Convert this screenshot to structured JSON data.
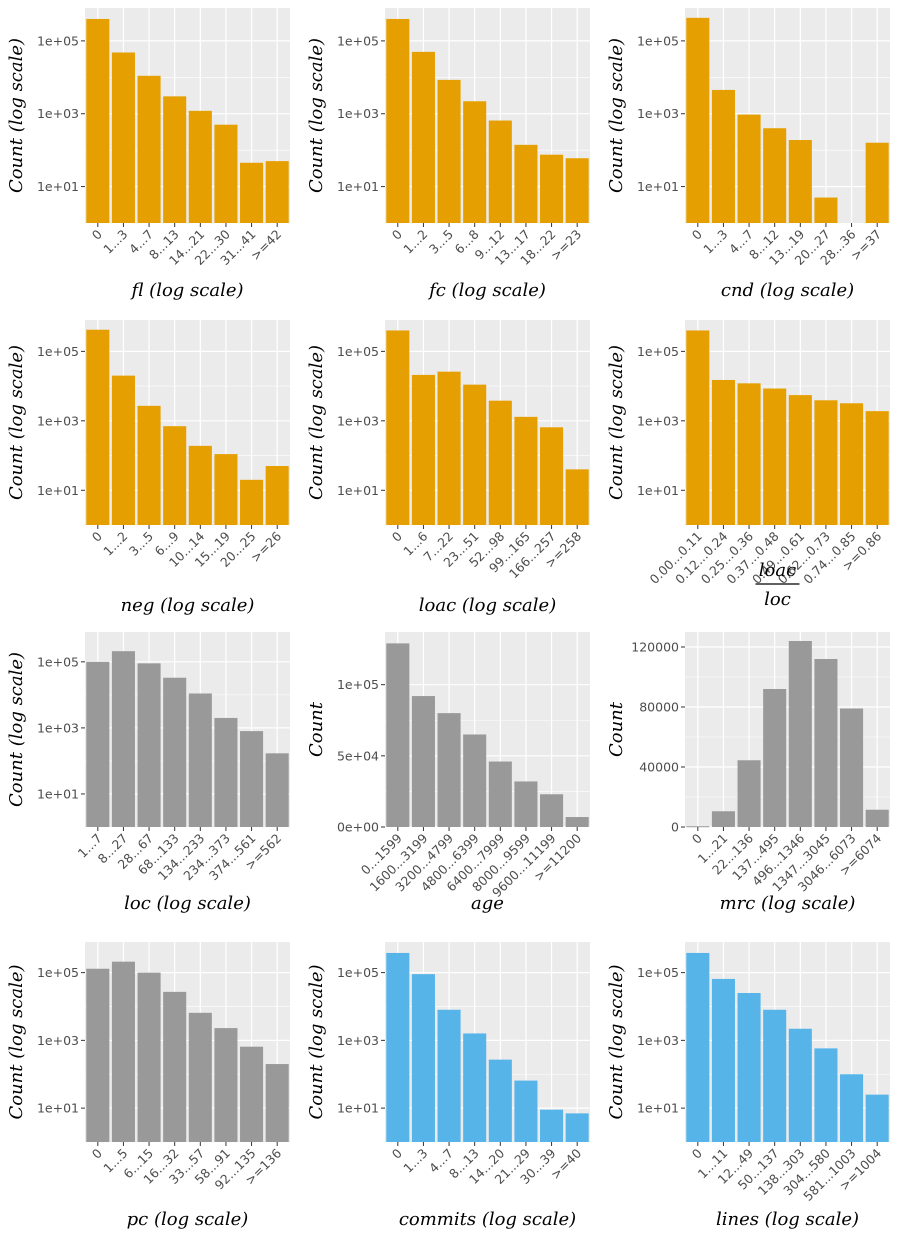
{
  "colors": {
    "orange": "#E69F00",
    "grey": "#999999",
    "blue": "#56B4E9",
    "panel_bg": "#EBEBEB",
    "grid": "#FFFFFF"
  },
  "chart_data": [
    {
      "id": "fl",
      "type": "bar",
      "scale": "log",
      "color": "orange",
      "categories": [
        "0",
        "1...3",
        "4...7",
        "8...13",
        "14...21",
        "22...30",
        "31...41",
        ">=42"
      ],
      "values": [
        400000,
        48000,
        11000,
        3000,
        1200,
        500,
        45,
        50
      ],
      "ylim": [
        1,
        800000
      ],
      "yticks": [
        10,
        1000,
        100000
      ],
      "ytick_labels": [
        "1e+01",
        "1e+03",
        "1e+05"
      ],
      "ylabel": "Count (log scale)",
      "xlabel": "fl (log scale)"
    },
    {
      "id": "fc",
      "type": "bar",
      "scale": "log",
      "color": "orange",
      "categories": [
        "0",
        "1...2",
        "3...5",
        "6...8",
        "9...12",
        "13...17",
        "18...22",
        ">=23"
      ],
      "values": [
        400000,
        50000,
        8500,
        2200,
        650,
        140,
        75,
        60
      ],
      "ylim": [
        1,
        800000
      ],
      "yticks": [
        10,
        1000,
        100000
      ],
      "ytick_labels": [
        "1e+01",
        "1e+03",
        "1e+05"
      ],
      "ylabel": "Count (log scale)",
      "xlabel": "fc (log scale)"
    },
    {
      "id": "cnd",
      "type": "bar",
      "scale": "log",
      "color": "orange",
      "categories": [
        "0",
        "1...3",
        "4...7",
        "8...12",
        "13...19",
        "20...27",
        "28...36",
        ">=37"
      ],
      "values": [
        430000,
        4500,
        950,
        400,
        190,
        5,
        0,
        160
      ],
      "ylim": [
        1,
        800000
      ],
      "yticks": [
        10,
        1000,
        100000
      ],
      "ytick_labels": [
        "1e+01",
        "1e+03",
        "1e+05"
      ],
      "ylabel": "Count (log scale)",
      "xlabel": "cnd (log scale)"
    },
    {
      "id": "neg",
      "type": "bar",
      "scale": "log",
      "color": "orange",
      "categories": [
        "0",
        "1...2",
        "3...5",
        "6...9",
        "10...14",
        "15...19",
        "20...25",
        ">=26"
      ],
      "values": [
        420000,
        20000,
        2700,
        700,
        190,
        110,
        20,
        50
      ],
      "ylim": [
        1,
        800000
      ],
      "yticks": [
        10,
        1000,
        100000
      ],
      "ytick_labels": [
        "1e+01",
        "1e+03",
        "1e+05"
      ],
      "ylabel": "Count (log scale)",
      "xlabel": "neg (log scale)"
    },
    {
      "id": "loac",
      "type": "bar",
      "scale": "log",
      "color": "orange",
      "categories": [
        "0",
        "1...6",
        "7...22",
        "23...51",
        "52...98",
        "99...165",
        "166...257",
        ">=258"
      ],
      "values": [
        400000,
        21000,
        26000,
        11000,
        3800,
        1300,
        650,
        40
      ],
      "ylim": [
        1,
        800000
      ],
      "yticks": [
        10,
        1000,
        100000
      ],
      "ytick_labels": [
        "1e+01",
        "1e+03",
        "1e+05"
      ],
      "ylabel": "Count (log scale)",
      "xlabel": "loac (log scale)"
    },
    {
      "id": "loac_loc",
      "type": "bar",
      "scale": "log",
      "color": "orange",
      "categories": [
        "0.00...0.11",
        "0.12...0.24",
        "0.25...0.36",
        "0.37...0.48",
        "0.49...0.61",
        "0.62...0.73",
        "0.74...0.85",
        ">=0.86"
      ],
      "values": [
        400000,
        15000,
        12000,
        8500,
        5500,
        3900,
        3200,
        1900
      ],
      "ylim": [
        1,
        800000
      ],
      "yticks": [
        10,
        1000,
        100000
      ],
      "ytick_labels": [
        "1e+01",
        "1e+03",
        "1e+05"
      ],
      "ylabel": "Count (log scale)",
      "xlabel_num": "loac",
      "xlabel_den": "loc"
    },
    {
      "id": "loc",
      "type": "bar",
      "scale": "log",
      "color": "grey",
      "categories": [
        "1...7",
        "8...27",
        "28...67",
        "68...133",
        "134...233",
        "234...373",
        "374...561",
        ">=562"
      ],
      "values": [
        100000,
        210000,
        90000,
        33000,
        11000,
        2000,
        800,
        170
      ],
      "ylim": [
        1,
        800000
      ],
      "yticks": [
        10,
        1000,
        100000
      ],
      "ytick_labels": [
        "1e+01",
        "1e+03",
        "1e+05"
      ],
      "ylabel": "Count (log scale)",
      "xlabel": "loc (log scale)"
    },
    {
      "id": "age",
      "type": "bar",
      "scale": "linear",
      "color": "grey",
      "categories": [
        "0...1599",
        "1600...3199",
        "3200...4799",
        "4800...6399",
        "6400...7999",
        "8000...9599",
        "9600...11199",
        ">=11200"
      ],
      "values": [
        129000,
        92000,
        80000,
        65000,
        46000,
        32000,
        23000,
        7000
      ],
      "ylim": [
        0,
        137000
      ],
      "yticks": [
        0,
        50000,
        100000
      ],
      "ytick_labels": [
        "0e+00",
        "5e+04",
        "1e+05"
      ],
      "ylabel": "Count",
      "xlabel": "age"
    },
    {
      "id": "mrc",
      "type": "bar",
      "scale": "linear",
      "color": "grey",
      "categories": [
        "0",
        "1...21",
        "22...136",
        "137...495",
        "496...1346",
        "1347...3045",
        "3046...6073",
        ">=6074"
      ],
      "values": [
        500,
        10500,
        44500,
        92000,
        124000,
        112000,
        79000,
        11500
      ],
      "ylim": [
        0,
        130000
      ],
      "yticks": [
        0,
        40000,
        80000,
        120000
      ],
      "ytick_labels": [
        "0",
        "40000",
        "80000",
        "120000"
      ],
      "ylabel": "Count",
      "xlabel": "mrc (log scale)"
    },
    {
      "id": "pc",
      "type": "bar",
      "scale": "log",
      "color": "grey",
      "categories": [
        "0",
        "1...5",
        "6...15",
        "16...32",
        "33...57",
        "58...91",
        "92...135",
        ">=136"
      ],
      "values": [
        130000,
        210000,
        100000,
        27000,
        6500,
        2300,
        650,
        200
      ],
      "ylim": [
        1,
        800000
      ],
      "yticks": [
        10,
        1000,
        100000
      ],
      "ytick_labels": [
        "1e+01",
        "1e+03",
        "1e+05"
      ],
      "ylabel": "Count (log scale)",
      "xlabel": "pc (log scale)"
    },
    {
      "id": "commits",
      "type": "bar",
      "scale": "log",
      "color": "blue",
      "categories": [
        "0",
        "1...3",
        "4...7",
        "8...13",
        "14...20",
        "21...29",
        "30...39",
        ">=40"
      ],
      "values": [
        380000,
        90000,
        8000,
        1600,
        270,
        65,
        9,
        7
      ],
      "ylim": [
        1,
        800000
      ],
      "yticks": [
        10,
        1000,
        100000
      ],
      "ytick_labels": [
        "1e+01",
        "1e+03",
        "1e+05"
      ],
      "ylabel": "Count (log scale)",
      "xlabel": "commits (log scale)"
    },
    {
      "id": "lines",
      "type": "bar",
      "scale": "log",
      "color": "blue",
      "categories": [
        "0",
        "1...11",
        "12...49",
        "50...137",
        "138...303",
        "304...580",
        "581...1003",
        ">=1004"
      ],
      "values": [
        380000,
        65000,
        25000,
        8000,
        2200,
        580,
        100,
        25
      ],
      "ylim": [
        1,
        800000
      ],
      "yticks": [
        10,
        1000,
        100000
      ],
      "ytick_labels": [
        "1e+01",
        "1e+03",
        "1e+05"
      ],
      "ylabel": "Count (log scale)",
      "xlabel": "lines (log scale)"
    }
  ]
}
